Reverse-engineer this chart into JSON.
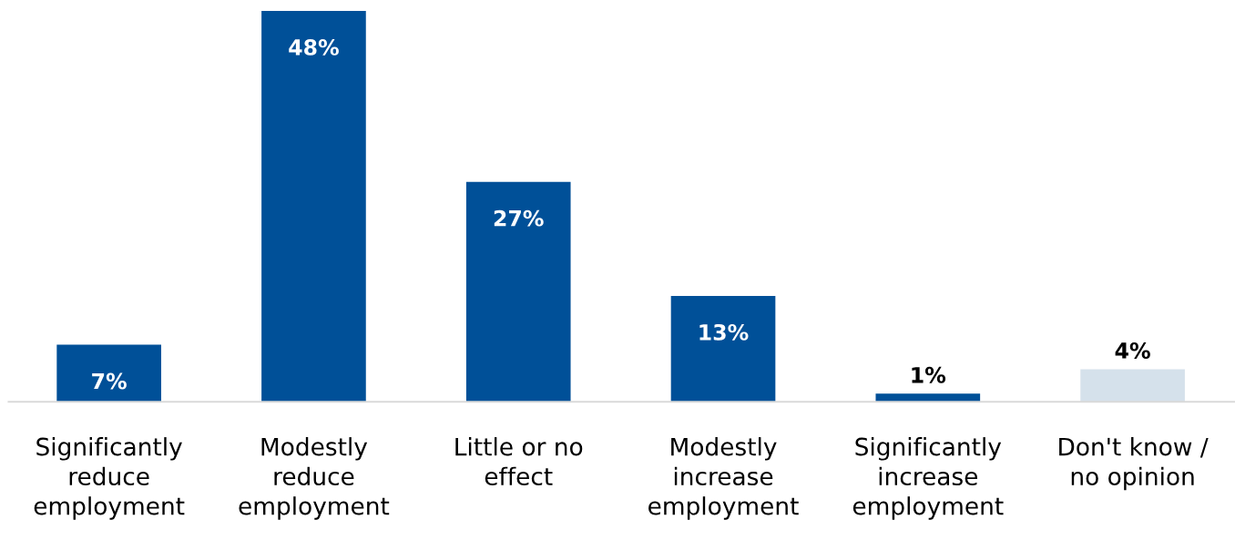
{
  "chart_data": {
    "type": "bar",
    "categories": [
      "Significantly\nreduce\nemployment",
      "Modestly\nreduce\nemployment",
      "Little or no\neffect",
      "Modestly\nincrease\nemployment",
      "Significantly\nincrease\nemployment",
      "Don't know /\nno opinion"
    ],
    "values": [
      7,
      48,
      27,
      13,
      1,
      4
    ],
    "colors": [
      "#005098",
      "#005098",
      "#005098",
      "#005098",
      "#005098",
      "#d5e1eb"
    ],
    "value_labels": [
      "7%",
      "48%",
      "27%",
      "13%",
      "1%",
      "4%"
    ],
    "grid": false,
    "legend": false
  }
}
